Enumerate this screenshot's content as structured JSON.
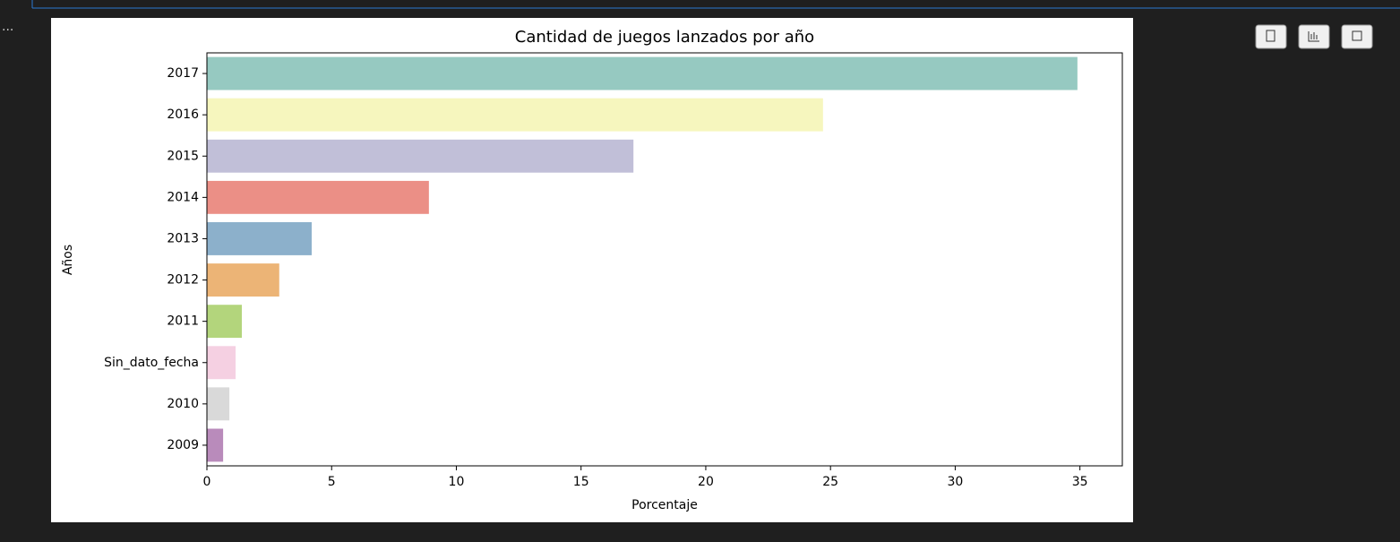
{
  "output_menu": "...",
  "chart_data": {
    "type": "barh",
    "title": "Cantidad de juegos lanzados por año",
    "xlabel": "Porcentaje",
    "ylabel": "Años",
    "categories": [
      "2017",
      "2016",
      "2015",
      "2014",
      "2013",
      "2012",
      "2011",
      "Sin_dato_fecha",
      "2010",
      "2009"
    ],
    "values": [
      34.9,
      24.7,
      17.1,
      8.9,
      4.2,
      2.9,
      1.4,
      1.15,
      0.9,
      0.65
    ],
    "colors": [
      "#96c9c1",
      "#f6f6be",
      "#c1bfd8",
      "#eb8f86",
      "#8cb0cb",
      "#ecb476",
      "#b3d57c",
      "#f5d0e2",
      "#d9d9d9",
      "#b98bbb"
    ],
    "xlim": [
      0,
      36.7
    ],
    "xticks": [
      0,
      5,
      10,
      15,
      20,
      25,
      30,
      35
    ],
    "grid": false
  }
}
